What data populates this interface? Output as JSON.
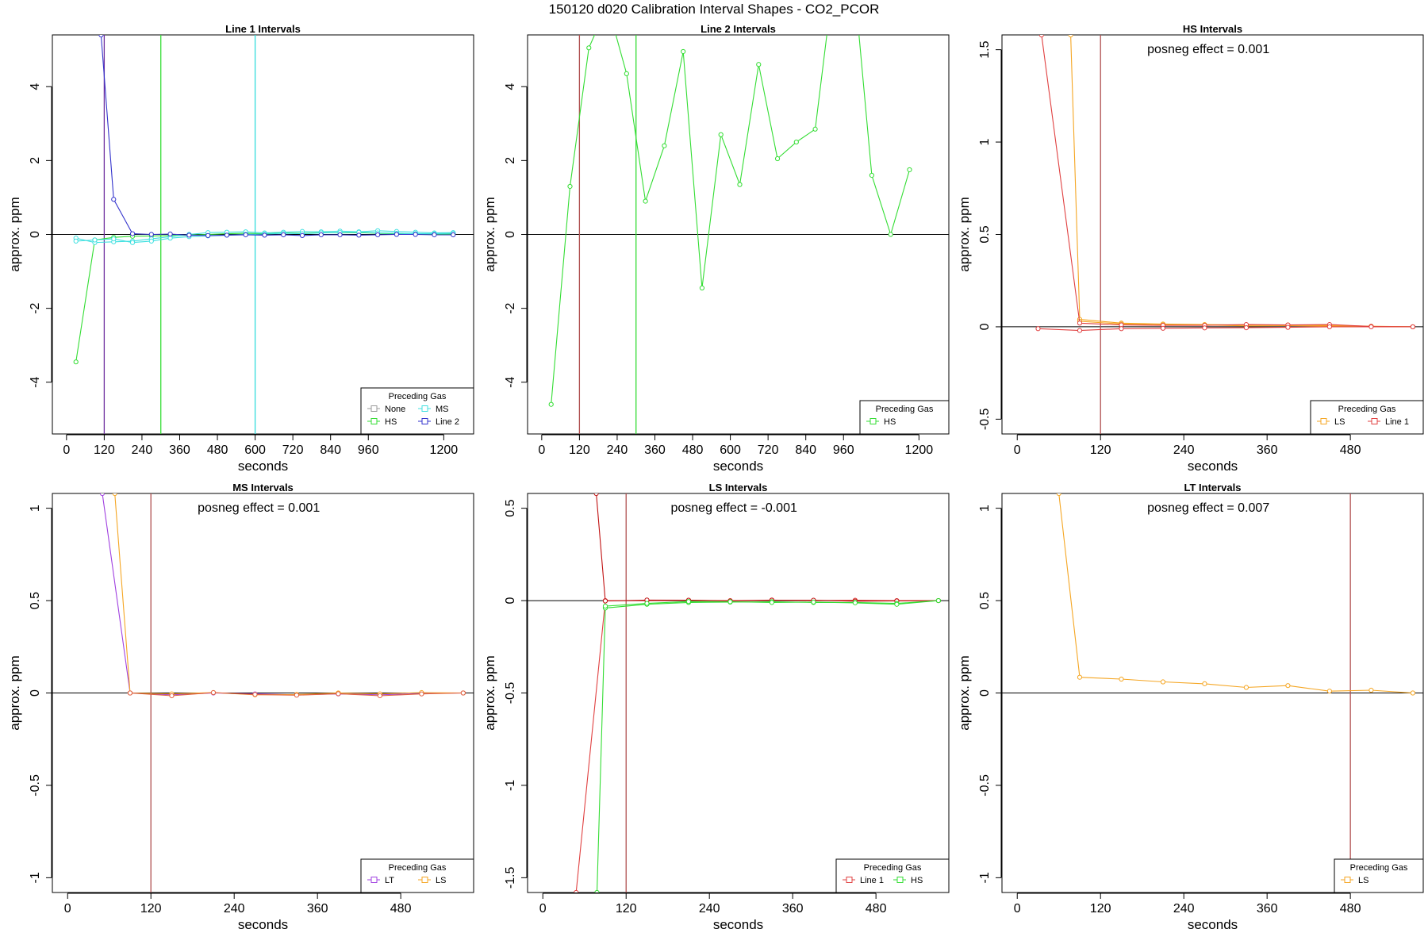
{
  "page_title": "150120  d020   Calibration Interval Shapes - CO2_PCOR",
  "chart_data": [
    {
      "type": "line",
      "title": "Line 1 Intervals",
      "xlabel": "seconds",
      "ylabel": "approx. ppm",
      "xlim": [
        -45,
        1295
      ],
      "ylim": [
        -5.4,
        5.4
      ],
      "xticks": [
        0,
        120,
        240,
        360,
        480,
        600,
        720,
        840,
        960,
        1200
      ],
      "yticks": [
        -4,
        -2,
        0,
        2,
        4
      ],
      "hline": 0,
      "vlines": [
        {
          "x": 120,
          "color": "#7030a0"
        },
        {
          "x": 300,
          "color": "#33dd33"
        },
        {
          "x": 600,
          "color": "#33dddd"
        }
      ],
      "legend": {
        "title": "Preceding Gas",
        "position": "bottom-right",
        "columns": 2,
        "entries": [
          {
            "name": "None",
            "color": "#9a9a9a"
          },
          {
            "name": "MS",
            "color": "#40e0e0"
          },
          {
            "name": "HS",
            "color": "#33dd33"
          },
          {
            "name": "Line 2",
            "color": "#3333cc"
          }
        ]
      },
      "series": [
        {
          "name": "HS",
          "color": "#33dd33",
          "x": [
            30,
            90,
            150,
            210,
            270,
            330,
            390,
            450,
            510,
            570,
            630,
            690,
            750,
            810,
            870,
            930,
            990,
            1050,
            1110,
            1170,
            1230
          ],
          "y": [
            -3.45,
            -0.15,
            -0.08,
            -0.05,
            -0.04,
            -0.03,
            -0.02,
            0.0,
            0.02,
            0.03,
            0.02,
            0.04,
            0.03,
            0.05,
            0.04,
            0.05,
            0.03,
            0.02,
            0.02,
            0.01,
            0.01
          ]
        },
        {
          "name": "MS",
          "color": "#40e0e0",
          "x": [
            30,
            90,
            150,
            210,
            270,
            330,
            390,
            450,
            510,
            570,
            630,
            690,
            750,
            810,
            870,
            930,
            990,
            1050,
            1110,
            1170,
            1230
          ],
          "y": [
            -0.1,
            -0.22,
            -0.2,
            -0.18,
            -0.12,
            -0.06,
            0.0,
            0.05,
            0.06,
            0.07,
            0.04,
            0.06,
            0.08,
            0.07,
            0.09,
            0.07,
            0.1,
            0.08,
            0.06,
            0.04,
            0.05
          ]
        },
        {
          "name": "MS",
          "color": "#40e0e0",
          "x": [
            30,
            90,
            150,
            210,
            270,
            330,
            390,
            450,
            510,
            570,
            630,
            690,
            750,
            810,
            870,
            930,
            990,
            1050,
            1110,
            1170,
            1230
          ],
          "y": [
            -0.18,
            -0.15,
            -0.12,
            -0.22,
            -0.18,
            -0.1,
            -0.06,
            -0.04,
            -0.02,
            0.0,
            0.01,
            0.03,
            0.02,
            0.04,
            0.05,
            0.06,
            0.04,
            0.03,
            0.02,
            0.02,
            0.03
          ]
        },
        {
          "name": "Line 2",
          "color": "#3333cc",
          "x": [
            110,
            150,
            210,
            270,
            330,
            390,
            450,
            510,
            570,
            630,
            690,
            750,
            810,
            870,
            930,
            990,
            1050,
            1110,
            1170,
            1230
          ],
          "y": [
            5.4,
            0.95,
            0.02,
            0.0,
            0.01,
            -0.02,
            -0.03,
            -0.02,
            -0.01,
            -0.02,
            -0.01,
            -0.03,
            -0.01,
            -0.01,
            -0.02,
            -0.01,
            0.0,
            0.0,
            -0.01,
            -0.01
          ]
        }
      ]
    },
    {
      "type": "line",
      "title": "Line 2 Intervals",
      "xlabel": "seconds",
      "ylabel": "approx. ppm",
      "xlim": [
        -45,
        1295
      ],
      "ylim": [
        -5.4,
        5.4
      ],
      "xticks": [
        0,
        120,
        240,
        360,
        480,
        600,
        720,
        840,
        960,
        1200
      ],
      "yticks": [
        -4,
        -2,
        0,
        2,
        4
      ],
      "hline": 0,
      "vlines": [
        {
          "x": 120,
          "color": "#b05050"
        },
        {
          "x": 300,
          "color": "#33dd33"
        }
      ],
      "legend": {
        "title": "Preceding Gas",
        "position": "bottom-right",
        "columns": 1,
        "entries": [
          {
            "name": "HS",
            "color": "#33dd33"
          }
        ]
      },
      "series": [
        {
          "name": "HS",
          "color": "#33dd33",
          "x": [
            30,
            90,
            150,
            210,
            270,
            330,
            390,
            450,
            510,
            570,
            630,
            690,
            750,
            810,
            870,
            930,
            990,
            1050,
            1110,
            1170,
            1230
          ],
          "y": [
            -4.6,
            1.3,
            5.05,
            6.2,
            4.35,
            0.9,
            2.4,
            4.95,
            -1.45,
            2.7,
            1.35,
            4.6,
            2.05,
            2.5,
            2.85,
            7.0,
            7.2,
            1.6,
            0.0,
            1.75,
            null
          ]
        }
      ]
    },
    {
      "type": "line",
      "title": "HS Intervals",
      "xlabel": "seconds",
      "ylabel": "approx. ppm",
      "annotation": "posneg effect = 0.001",
      "xlim": [
        -22,
        585
      ],
      "ylim": [
        -0.58,
        1.58
      ],
      "xticks": [
        0,
        120,
        240,
        360,
        480
      ],
      "yticks": [
        -0.5,
        0.0,
        0.5,
        1.0,
        1.5
      ],
      "hline": 0,
      "vlines": [
        {
          "x": 120,
          "color": "#b05050"
        }
      ],
      "legend": {
        "title": "Preceding Gas",
        "position": "bottom-right",
        "columns": 2,
        "entries": [
          {
            "name": "LS",
            "color": "#f5a623"
          },
          {
            "name": "Line 1",
            "color": "#e04040"
          }
        ]
      },
      "series": [
        {
          "name": "LS",
          "color": "#f5a623",
          "x": [
            77,
            90,
            150,
            210,
            270,
            330,
            390,
            450,
            510,
            570
          ],
          "y": [
            1.58,
            0.04,
            0.02,
            0.015,
            0.012,
            0.01,
            0.01,
            0.008,
            0.003,
            0.0
          ]
        },
        {
          "name": "LS",
          "color": "#f5a623",
          "x": [
            90,
            150,
            210,
            270,
            330,
            390,
            450,
            510,
            570
          ],
          "y": [
            0.03,
            0.015,
            0.01,
            0.01,
            0.005,
            0.006,
            0.004,
            0.002,
            0.0
          ]
        },
        {
          "name": "Line 1",
          "color": "#e04040",
          "x": [
            35,
            90,
            150,
            210,
            270,
            330,
            390,
            450,
            510,
            570
          ],
          "y": [
            1.58,
            0.02,
            0.01,
            0.008,
            0.008,
            0.012,
            0.01,
            0.012,
            0.002,
            0.0
          ]
        },
        {
          "name": "Line 1",
          "color": "#e04040",
          "x": [
            30,
            90,
            150,
            210,
            270,
            330,
            390,
            450,
            510,
            570
          ],
          "y": [
            -0.01,
            -0.02,
            -0.01,
            -0.008,
            -0.006,
            -0.005,
            -0.003,
            0.0,
            0.0,
            0.0
          ]
        }
      ]
    },
    {
      "type": "line",
      "title": "MS Intervals",
      "xlabel": "seconds",
      "ylabel": "approx. ppm",
      "annotation": "posneg effect = 0.001",
      "xlim": [
        -22,
        585
      ],
      "ylim": [
        -1.08,
        1.08
      ],
      "xticks": [
        0,
        120,
        240,
        360,
        480
      ],
      "yticks": [
        -1.0,
        -0.5,
        0.0,
        0.5,
        1.0
      ],
      "hline": 0,
      "vlines": [
        {
          "x": 120,
          "color": "#b05050"
        }
      ],
      "legend": {
        "title": "Preceding Gas",
        "position": "bottom-right",
        "columns": 2,
        "entries": [
          {
            "name": "LT",
            "color": "#a040e0"
          },
          {
            "name": "LS",
            "color": "#f5a623"
          }
        ]
      },
      "series": [
        {
          "name": "LT",
          "color": "#a040e0",
          "x": [
            50,
            90,
            150,
            210,
            270,
            330,
            390,
            450,
            510,
            570
          ],
          "y": [
            1.08,
            0.0,
            -0.01,
            0.0,
            -0.005,
            -0.01,
            -0.005,
            -0.01,
            -0.003,
            0.0
          ]
        },
        {
          "name": "LS",
          "color": "#f5a623",
          "x": [
            68,
            90,
            150,
            210,
            270,
            330,
            390,
            450,
            510,
            570
          ],
          "y": [
            1.08,
            0.0,
            -0.005,
            0.002,
            -0.01,
            -0.008,
            0.0,
            -0.005,
            0.002,
            0.0
          ]
        },
        {
          "name": "LS",
          "color": "#e06040",
          "x": [
            90,
            150,
            210,
            270,
            330,
            390,
            450,
            510,
            570
          ],
          "y": [
            0.0,
            -0.015,
            0.002,
            -0.008,
            -0.012,
            -0.004,
            -0.015,
            -0.005,
            0.0
          ]
        }
      ]
    },
    {
      "type": "line",
      "title": "LS Intervals",
      "xlabel": "seconds",
      "ylabel": "approx. ppm",
      "annotation": "posneg effect = -0.001",
      "xlim": [
        -22,
        585
      ],
      "ylim": [
        -1.58,
        0.58
      ],
      "xticks": [
        0,
        120,
        240,
        360,
        480
      ],
      "yticks": [
        -1.5,
        -1.0,
        -0.5,
        0.0,
        0.5
      ],
      "hline": 0,
      "vlines": [
        {
          "x": 120,
          "color": "#b05050"
        }
      ],
      "legend": {
        "title": "Preceding Gas",
        "position": "bottom-right",
        "columns": 2,
        "entries": [
          {
            "name": "Line 1",
            "color": "#e04040"
          },
          {
            "name": "HS",
            "color": "#33dd33"
          }
        ]
      },
      "series": [
        {
          "name": "Line 1",
          "color": "#e04040",
          "x": [
            48,
            90,
            150,
            210,
            270,
            330,
            390,
            450,
            510,
            570
          ],
          "y": [
            -1.58,
            0.0,
            0.0,
            0.002,
            0.0,
            0.003,
            0.0,
            0.002,
            0.0,
            0.0
          ]
        },
        {
          "name": "Line 1",
          "color": "#c01010",
          "x": [
            77,
            90,
            150,
            210,
            270,
            330,
            390,
            450,
            510,
            570
          ],
          "y": [
            0.58,
            -0.002,
            0.003,
            0.002,
            -0.002,
            0.002,
            0.002,
            -0.003,
            -0.002,
            0.0
          ]
        },
        {
          "name": "HS",
          "color": "#33dd33",
          "x": [
            78,
            90,
            150,
            210,
            270,
            330,
            390,
            450,
            510,
            570
          ],
          "y": [
            -1.58,
            -0.04,
            -0.02,
            -0.01,
            -0.008,
            -0.006,
            -0.01,
            -0.01,
            -0.015,
            0.0
          ]
        },
        {
          "name": "HS",
          "color": "#33dd33",
          "x": [
            90,
            150,
            210,
            270,
            330,
            390,
            450,
            510,
            570
          ],
          "y": [
            -0.03,
            -0.015,
            -0.005,
            -0.006,
            -0.01,
            -0.008,
            -0.012,
            -0.02,
            0.0
          ]
        }
      ]
    },
    {
      "type": "line",
      "title": "LT Intervals",
      "xlabel": "seconds",
      "ylabel": "approx. ppm",
      "annotation": "posneg effect = 0.007",
      "xlim": [
        -22,
        585
      ],
      "ylim": [
        -1.08,
        1.08
      ],
      "xticks": [
        0,
        120,
        240,
        360,
        480
      ],
      "yticks": [
        -1.0,
        -0.5,
        0.0,
        0.5,
        1.0
      ],
      "hline": 0,
      "vlines": [
        {
          "x": 480,
          "color": "#b05050"
        }
      ],
      "legend": {
        "title": "Preceding Gas",
        "position": "bottom-right",
        "columns": 1,
        "entries": [
          {
            "name": "LS",
            "color": "#f5a623"
          }
        ]
      },
      "series": [
        {
          "name": "LS",
          "color": "#f5a623",
          "x": [
            60,
            90,
            150,
            210,
            270,
            330,
            390,
            450,
            510,
            570
          ],
          "y": [
            1.08,
            0.085,
            0.075,
            0.06,
            0.05,
            0.03,
            0.04,
            0.01,
            0.015,
            0.0
          ]
        }
      ]
    }
  ]
}
